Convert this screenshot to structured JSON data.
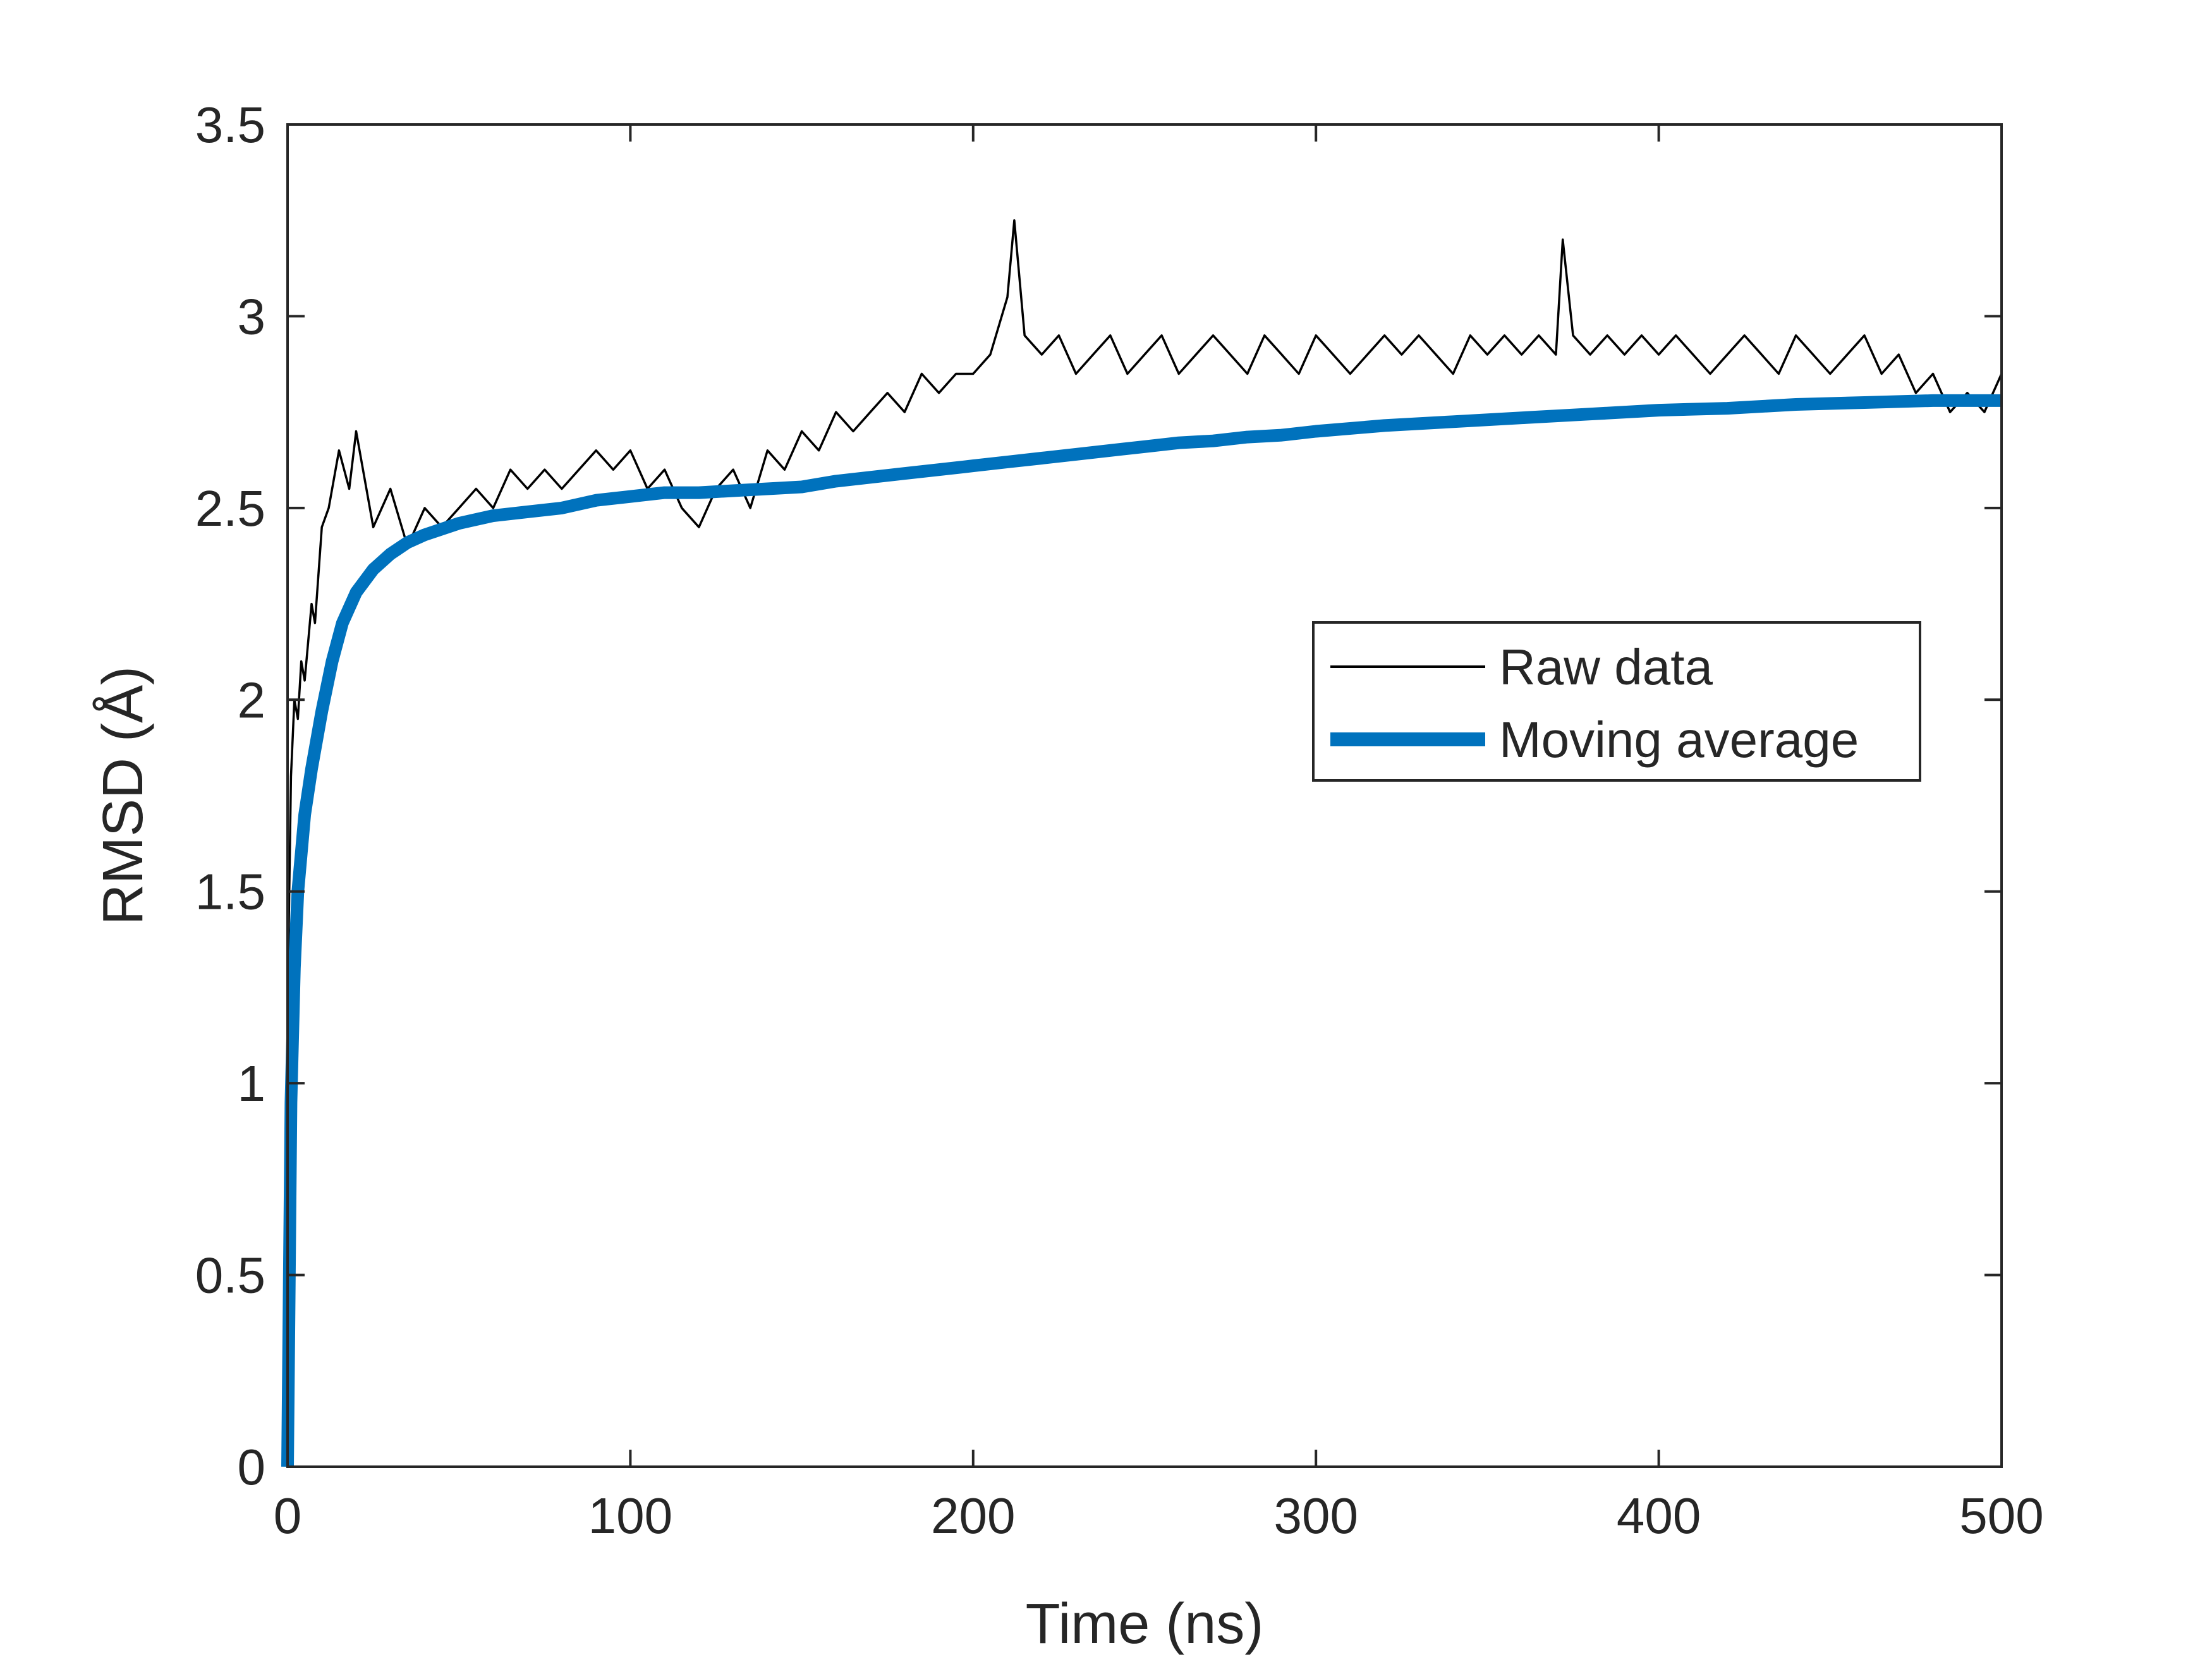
{
  "chart_data": {
    "type": "line",
    "title": "",
    "xlabel": "Time (ns)",
    "ylabel": "RMSD (Å)",
    "xlim": [
      0,
      500
    ],
    "ylim": [
      0,
      3.5
    ],
    "xticks": [
      0,
      100,
      200,
      300,
      400,
      500
    ],
    "yticks": [
      0,
      0.5,
      1,
      1.5,
      2,
      2.5,
      3,
      3.5
    ],
    "xtick_labels": [
      "0",
      "100",
      "200",
      "300",
      "400",
      "500"
    ],
    "ytick_labels": [
      "0",
      "0.5",
      "1",
      "1.5",
      "2",
      "2.5",
      "3",
      "3.5"
    ],
    "grid": false,
    "box": true,
    "legend_position": "right, mid-upper",
    "series": [
      {
        "name": "Raw data",
        "color": "#000000",
        "style": "thin",
        "x": [
          0,
          1,
          2,
          3,
          4,
          5,
          7,
          8,
          10,
          12,
          15,
          18,
          20,
          25,
          30,
          35,
          40,
          45,
          50,
          55,
          60,
          65,
          70,
          75,
          80,
          85,
          90,
          95,
          100,
          105,
          110,
          115,
          120,
          125,
          130,
          135,
          140,
          145,
          150,
          155,
          160,
          165,
          170,
          175,
          180,
          185,
          190,
          195,
          200,
          205,
          210,
          212,
          215,
          220,
          225,
          230,
          235,
          240,
          245,
          250,
          255,
          260,
          265,
          270,
          275,
          280,
          285,
          290,
          295,
          300,
          305,
          310,
          315,
          320,
          325,
          330,
          335,
          340,
          345,
          350,
          355,
          360,
          365,
          370,
          372,
          375,
          380,
          385,
          390,
          395,
          400,
          405,
          410,
          415,
          420,
          425,
          430,
          435,
          440,
          445,
          450,
          455,
          460,
          465,
          470,
          475,
          480,
          485,
          490,
          495,
          500
        ],
        "y": [
          1.2,
          1.8,
          2.0,
          1.95,
          2.1,
          2.05,
          2.25,
          2.2,
          2.45,
          2.5,
          2.65,
          2.55,
          2.7,
          2.45,
          2.55,
          2.4,
          2.5,
          2.45,
          2.5,
          2.55,
          2.5,
          2.6,
          2.55,
          2.6,
          2.55,
          2.6,
          2.65,
          2.6,
          2.65,
          2.55,
          2.6,
          2.5,
          2.45,
          2.55,
          2.6,
          2.5,
          2.65,
          2.6,
          2.7,
          2.65,
          2.75,
          2.7,
          2.75,
          2.8,
          2.75,
          2.85,
          2.8,
          2.85,
          2.85,
          2.9,
          3.05,
          3.25,
          2.95,
          2.9,
          2.95,
          2.85,
          2.9,
          2.95,
          2.85,
          2.9,
          2.95,
          2.85,
          2.9,
          2.95,
          2.9,
          2.85,
          2.95,
          2.9,
          2.85,
          2.95,
          2.9,
          2.85,
          2.9,
          2.95,
          2.9,
          2.95,
          2.9,
          2.85,
          2.95,
          2.9,
          2.95,
          2.9,
          2.95,
          2.9,
          3.2,
          2.95,
          2.9,
          2.95,
          2.9,
          2.95,
          2.9,
          2.95,
          2.9,
          2.85,
          2.9,
          2.95,
          2.9,
          2.85,
          2.95,
          2.9,
          2.85,
          2.9,
          2.95,
          2.85,
          2.9,
          2.8,
          2.85,
          2.75,
          2.8,
          2.75,
          2.85
        ]
      },
      {
        "name": "Moving average",
        "color": "#0072BD",
        "style": "thick",
        "x": [
          0,
          1,
          2,
          3,
          5,
          7,
          10,
          13,
          16,
          20,
          25,
          30,
          35,
          40,
          50,
          60,
          70,
          80,
          90,
          100,
          110,
          120,
          130,
          140,
          150,
          160,
          170,
          180,
          190,
          200,
          210,
          220,
          230,
          240,
          250,
          260,
          270,
          280,
          290,
          300,
          320,
          340,
          360,
          380,
          400,
          420,
          440,
          460,
          480,
          500
        ],
        "y": [
          0,
          0.95,
          1.3,
          1.5,
          1.7,
          1.82,
          1.97,
          2.1,
          2.2,
          2.28,
          2.34,
          2.38,
          2.41,
          2.43,
          2.46,
          2.48,
          2.49,
          2.5,
          2.52,
          2.53,
          2.54,
          2.54,
          2.545,
          2.55,
          2.555,
          2.57,
          2.58,
          2.59,
          2.6,
          2.61,
          2.62,
          2.63,
          2.64,
          2.65,
          2.66,
          2.67,
          2.675,
          2.685,
          2.69,
          2.7,
          2.715,
          2.725,
          2.735,
          2.745,
          2.755,
          2.76,
          2.77,
          2.775,
          2.78,
          2.78
        ]
      }
    ]
  }
}
